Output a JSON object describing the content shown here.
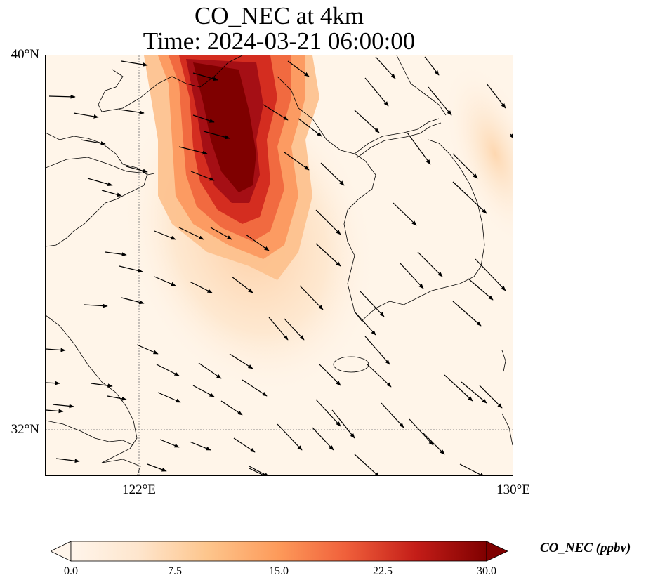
{
  "title": {
    "line1": "CO_NEC at 4km",
    "line2": "Time: 2024-03-21 06:00:00"
  },
  "map": {
    "lat_labels": [
      "40°N",
      "32°N"
    ],
    "lon_labels": [
      "122°E",
      "130°E"
    ],
    "extent": {
      "lon": [
        120,
        130
      ],
      "lat": [
        31,
        40
      ]
    }
  },
  "colorbar": {
    "label": "CO_NEC (ppbv)",
    "ticks": [
      "0.0",
      "7.5",
      "15.0",
      "22.5",
      "30.0"
    ],
    "range": [
      0,
      30
    ],
    "colormap": [
      "#fff5eb",
      "#fdd2a5",
      "#fdac67",
      "#f57446",
      "#d72f21",
      "#a60012",
      "#7f0000"
    ]
  },
  "colors": {
    "plume_core": "#7f0000",
    "background": "#fff5e9",
    "coastline": "#000000"
  }
}
